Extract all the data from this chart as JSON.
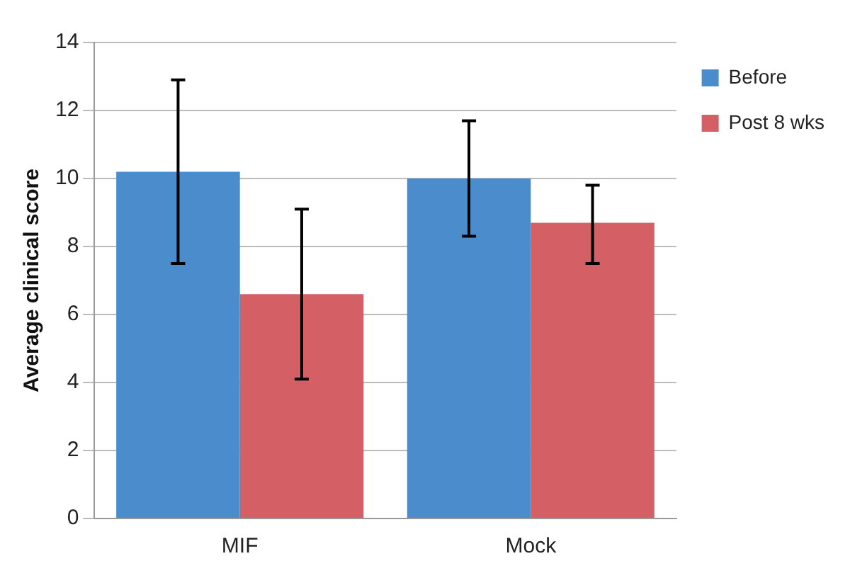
{
  "chart_data": {
    "type": "bar",
    "ylabel": "Average clinical score",
    "categories": [
      "MIF",
      "Mock"
    ],
    "series": [
      {
        "name": "Before",
        "color": "#4a8ccc",
        "values": [
          10.2,
          10.0
        ],
        "errors": [
          [
            7.5,
            12.9
          ],
          [
            8.3,
            11.7
          ]
        ]
      },
      {
        "name": "Post 8 wks",
        "color": "#d46066",
        "values": [
          6.6,
          8.7
        ],
        "errors": [
          [
            4.1,
            9.1
          ],
          [
            7.5,
            9.8
          ]
        ]
      }
    ],
    "ylim": [
      0,
      14
    ],
    "yticks": [
      0,
      2,
      4,
      6,
      8,
      10,
      12,
      14
    ],
    "grid": "y",
    "legend": "top right"
  }
}
